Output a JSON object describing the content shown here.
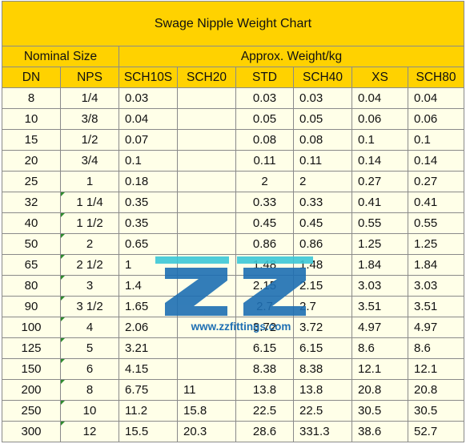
{
  "title": "Swage Nipple Weight Chart",
  "group_headers": {
    "nominal_size": "Nominal Size",
    "approx_weight": "Approx. Weight/kg"
  },
  "columns": [
    "DN",
    "NPS",
    "SCH10S",
    "SCH20",
    "STD",
    "SCH40",
    "XS",
    "SCH80"
  ],
  "rows": [
    [
      "8",
      "1/4",
      "0.03",
      "",
      "0.03",
      "0.03",
      "0.04",
      "0.04"
    ],
    [
      "10",
      "3/8",
      "0.04",
      "",
      "0.05",
      "0.05",
      "0.06",
      "0.06"
    ],
    [
      "15",
      "1/2",
      "0.07",
      "",
      "0.08",
      "0.08",
      "0.1",
      "0.1"
    ],
    [
      "20",
      "3/4",
      "0.1",
      "",
      "0.11",
      "0.11",
      "0.14",
      "0.14"
    ],
    [
      "25",
      "1",
      "0.18",
      "",
      "2",
      "2",
      "0.27",
      "0.27"
    ],
    [
      "32",
      "1 1/4",
      "0.35",
      "",
      "0.33",
      "0.33",
      "0.41",
      "0.41"
    ],
    [
      "40",
      "1 1/2",
      "0.35",
      "",
      "0.45",
      "0.45",
      "0.55",
      "0.55"
    ],
    [
      "50",
      "2",
      "0.65",
      "",
      "0.86",
      "0.86",
      "1.25",
      "1.25"
    ],
    [
      "65",
      "2 1/2",
      "1",
      "",
      "1.48",
      "1.48",
      "1.84",
      "1.84"
    ],
    [
      "80",
      "3",
      "1.4",
      "",
      "2.15",
      "2.15",
      "3.03",
      "3.03"
    ],
    [
      "90",
      "3 1/2",
      "1.65",
      "",
      "2.7",
      "2.7",
      "3.51",
      "3.51"
    ],
    [
      "100",
      "4",
      "2.06",
      "",
      "3.72",
      "3.72",
      "4.97",
      "4.97"
    ],
    [
      "125",
      "5",
      "3.21",
      "",
      "6.15",
      "6.15",
      "8.6",
      "8.6"
    ],
    [
      "150",
      "6",
      "4.15",
      "",
      "8.38",
      "8.38",
      "12.1",
      "12.1"
    ],
    [
      "200",
      "8",
      "6.75",
      "11",
      "13.8",
      "13.8",
      "20.8",
      "20.8"
    ],
    [
      "250",
      "10",
      "11.2",
      "15.8",
      "22.5",
      "22.5",
      "30.5",
      "30.5"
    ],
    [
      "300",
      "12",
      "15.5",
      "20.3",
      "28.6",
      "331.3",
      "38.6",
      "52.7"
    ]
  ],
  "nps_marked_rows": [
    5,
    6,
    7,
    8,
    9,
    10,
    11,
    12,
    13,
    14,
    15,
    16
  ],
  "watermark": {
    "text": "www.zzfittings.com",
    "colors": {
      "logo": "#1e6fb3",
      "accent": "#3cc8d8"
    }
  },
  "colors": {
    "header_bg": "#ffd200",
    "row_bg": "#ffffe8",
    "border": "#8a8a8a",
    "marker": "#2e8b2e"
  }
}
